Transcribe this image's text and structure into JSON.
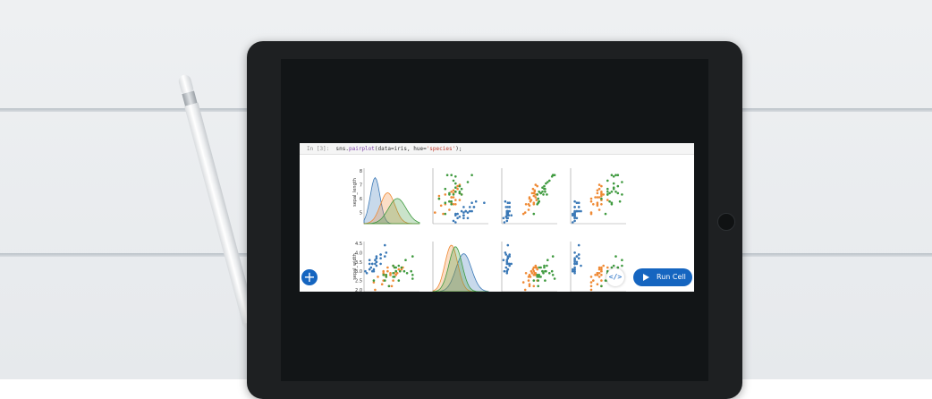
{
  "notebook": {
    "prompt": "In [3]:",
    "code": {
      "module": "sns.",
      "func": "pairplot",
      "arg1": "(data=iris, hue=",
      "str": "'species'",
      "end": ");"
    }
  },
  "actions": {
    "add_icon": "+",
    "code_icon": "</>",
    "run_label": "Run Cell"
  },
  "colors": {
    "setosa": "#3a78b6",
    "versicolor": "#ef8a35",
    "virginica": "#3f9a3f",
    "accent": "#1565c0"
  },
  "chart_data": {
    "type": "scatter",
    "row_labels": [
      "sepal_length",
      "sepal_width"
    ],
    "row1_ticks": [
      "8",
      "7",
      "6",
      "5"
    ],
    "row2_ticks": [
      "4.5",
      "4.0",
      "3.5",
      "3.0",
      "2.5",
      "2.0"
    ],
    "series": [
      {
        "key": "setosa",
        "sepal_length": [
          5.1,
          4.9,
          4.7,
          4.6,
          5.0,
          5.4,
          4.6,
          5.0,
          4.4,
          4.9,
          5.4,
          4.8,
          4.8,
          4.3,
          5.8,
          5.7,
          5.4,
          5.1,
          5.7,
          5.1,
          5.4,
          5.1,
          4.6,
          5.1,
          4.8
        ],
        "sepal_width": [
          3.5,
          3.0,
          3.2,
          3.1,
          3.6,
          3.9,
          3.4,
          3.4,
          2.9,
          3.1,
          3.7,
          3.4,
          3.0,
          3.0,
          4.0,
          4.4,
          3.9,
          3.5,
          3.8,
          3.8,
          3.4,
          3.7,
          3.6,
          3.3,
          3.4
        ],
        "petal_length": [
          1.4,
          1.4,
          1.3,
          1.5,
          1.4,
          1.7,
          1.4,
          1.5,
          1.4,
          1.5,
          1.5,
          1.6,
          1.4,
          1.1,
          1.2,
          1.5,
          1.3,
          1.4,
          1.7,
          1.5,
          1.7,
          1.5,
          1.0,
          1.7,
          1.9
        ],
        "petal_width": [
          0.2,
          0.2,
          0.2,
          0.2,
          0.2,
          0.4,
          0.3,
          0.2,
          0.2,
          0.1,
          0.2,
          0.2,
          0.1,
          0.1,
          0.2,
          0.4,
          0.4,
          0.3,
          0.3,
          0.3,
          0.2,
          0.4,
          0.2,
          0.5,
          0.2
        ]
      },
      {
        "key": "versicolor",
        "sepal_length": [
          7.0,
          6.4,
          6.9,
          5.5,
          6.5,
          5.7,
          6.3,
          4.9,
          6.6,
          5.2,
          5.0,
          5.9,
          6.0,
          6.1,
          5.6,
          6.7,
          5.6,
          5.8,
          6.2,
          5.6,
          5.9,
          6.1,
          6.3,
          6.1,
          6.4
        ],
        "sepal_width": [
          3.2,
          3.2,
          3.1,
          2.3,
          2.8,
          2.8,
          3.3,
          2.4,
          2.9,
          2.7,
          2.0,
          3.0,
          2.2,
          2.9,
          2.9,
          3.1,
          3.0,
          2.7,
          2.2,
          2.5,
          3.2,
          2.8,
          2.5,
          2.8,
          2.9
        ],
        "petal_length": [
          4.7,
          4.5,
          4.9,
          4.0,
          4.6,
          4.5,
          4.7,
          3.3,
          4.6,
          3.9,
          3.5,
          4.2,
          4.0,
          4.7,
          3.6,
          4.4,
          4.5,
          4.1,
          4.5,
          3.9,
          4.8,
          4.0,
          4.9,
          4.7,
          4.3
        ],
        "petal_width": [
          1.4,
          1.5,
          1.5,
          1.3,
          1.5,
          1.3,
          1.6,
          1.0,
          1.3,
          1.4,
          1.0,
          1.5,
          1.0,
          1.4,
          1.3,
          1.4,
          1.5,
          1.0,
          1.5,
          1.1,
          1.8,
          1.3,
          1.5,
          1.2,
          1.3
        ]
      },
      {
        "key": "virginica",
        "sepal_length": [
          6.3,
          5.8,
          7.1,
          6.3,
          6.5,
          7.6,
          4.9,
          7.3,
          6.7,
          7.2,
          6.5,
          6.4,
          6.8,
          5.7,
          5.8,
          6.4,
          6.5,
          7.7,
          7.7,
          6.0,
          6.9,
          5.6,
          7.7,
          6.3,
          6.7
        ],
        "sepal_width": [
          3.3,
          2.7,
          3.0,
          2.9,
          3.0,
          3.0,
          2.5,
          2.9,
          2.5,
          3.6,
          3.2,
          2.7,
          3.0,
          2.5,
          2.8,
          3.2,
          3.0,
          3.8,
          2.6,
          2.2,
          3.2,
          2.8,
          2.8,
          2.7,
          3.3
        ],
        "petal_length": [
          6.0,
          5.1,
          5.9,
          5.6,
          5.8,
          6.6,
          4.5,
          6.3,
          5.8,
          6.1,
          5.1,
          5.3,
          5.5,
          5.0,
          5.1,
          5.3,
          5.5,
          6.7,
          6.9,
          5.0,
          5.7,
          4.9,
          6.7,
          4.9,
          5.7
        ],
        "petal_width": [
          2.5,
          1.9,
          2.1,
          1.8,
          2.2,
          2.1,
          1.7,
          1.8,
          1.8,
          2.5,
          2.0,
          1.9,
          2.1,
          2.0,
          2.4,
          2.3,
          1.8,
          2.2,
          2.3,
          1.5,
          2.3,
          2.0,
          2.0,
          1.8,
          2.1
        ]
      }
    ],
    "density": [
      {
        "key": "setosa",
        "sepal_length_mean": 5.0,
        "sepal_length_sd": 0.35,
        "sepal_width_mean": 3.4,
        "sepal_width_sd": 0.38
      },
      {
        "key": "versicolor",
        "sepal_length_mean": 5.9,
        "sepal_length_sd": 0.52,
        "sepal_width_mean": 2.8,
        "sepal_width_sd": 0.31
      },
      {
        "key": "virginica",
        "sepal_length_mean": 6.6,
        "sepal_length_sd": 0.64,
        "sepal_width_mean": 3.0,
        "sepal_width_sd": 0.32
      }
    ]
  }
}
